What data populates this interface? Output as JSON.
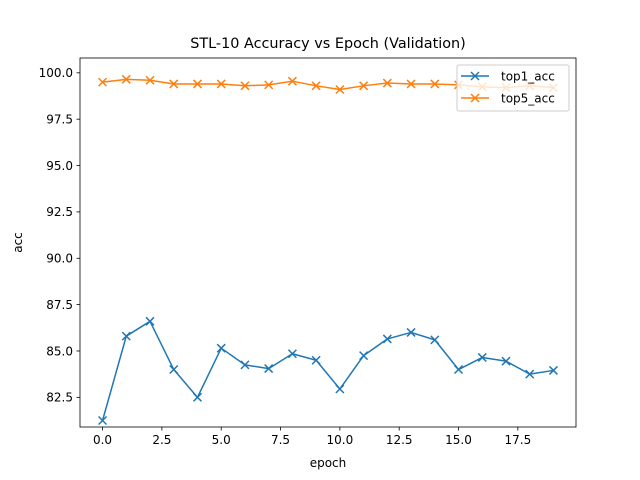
{
  "chart_data": {
    "type": "line",
    "title": "STL-10 Accuracy vs Epoch (Validation)",
    "xlabel": "epoch",
    "ylabel": "acc",
    "x": [
      0,
      1,
      2,
      3,
      4,
      5,
      6,
      7,
      8,
      9,
      10,
      11,
      12,
      13,
      14,
      15,
      16,
      17,
      18,
      19
    ],
    "xlim": [
      -0.95,
      19.95
    ],
    "ylim": [
      80.9,
      100.8
    ],
    "xticks": [
      0.0,
      2.5,
      5.0,
      7.5,
      10.0,
      12.5,
      15.0,
      17.5
    ],
    "xtick_labels": [
      "0.0",
      "2.5",
      "5.0",
      "7.5",
      "10.0",
      "12.5",
      "15.0",
      "17.5"
    ],
    "yticks": [
      82.5,
      85.0,
      87.5,
      90.0,
      92.5,
      95.0,
      97.5,
      100.0
    ],
    "ytick_labels": [
      "82.5",
      "85.0",
      "87.5",
      "90.0",
      "92.5",
      "95.0",
      "97.5",
      "100.0"
    ],
    "grid": false,
    "legend_position": "top-right",
    "series": [
      {
        "name": "top1_acc",
        "color": "#1f77b4",
        "marker": "x",
        "values": [
          81.25,
          85.8,
          86.6,
          84.0,
          82.5,
          85.15,
          84.25,
          84.05,
          84.85,
          84.5,
          82.95,
          84.75,
          85.65,
          86.0,
          85.6,
          84.0,
          84.65,
          84.45,
          83.75,
          83.95
        ]
      },
      {
        "name": "top5_acc",
        "color": "#ff7f0e",
        "marker": "x",
        "values": [
          99.5,
          99.65,
          99.6,
          99.4,
          99.4,
          99.4,
          99.3,
          99.35,
          99.55,
          99.3,
          99.1,
          99.3,
          99.45,
          99.4,
          99.4,
          99.35,
          99.25,
          99.2,
          99.3,
          99.2
        ]
      }
    ]
  }
}
